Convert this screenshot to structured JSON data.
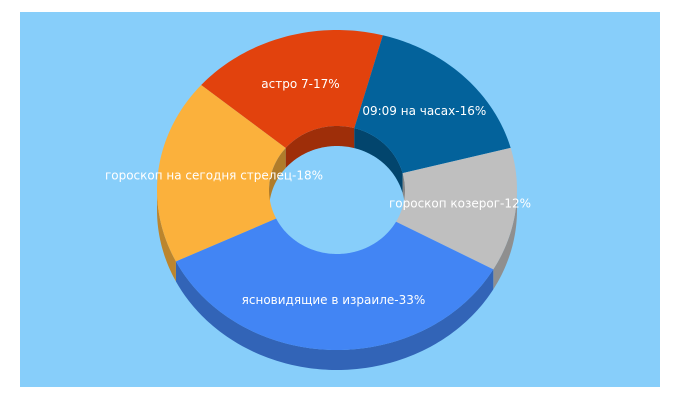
{
  "chart_data": {
    "type": "donut",
    "labels": [
      "астро 7-17%",
      "09:09 на часах-16%",
      "гороскоп козерог-12%",
      "ясновидящие в израиле-33%",
      "гороскоп на сегодня стрелец-18%"
    ],
    "values": [
      17,
      16,
      12,
      33,
      18
    ],
    "colors": [
      "#e2420d",
      "#03629b",
      "#bfbfbf",
      "#4285f4",
      "#fbb13c"
    ]
  }
}
